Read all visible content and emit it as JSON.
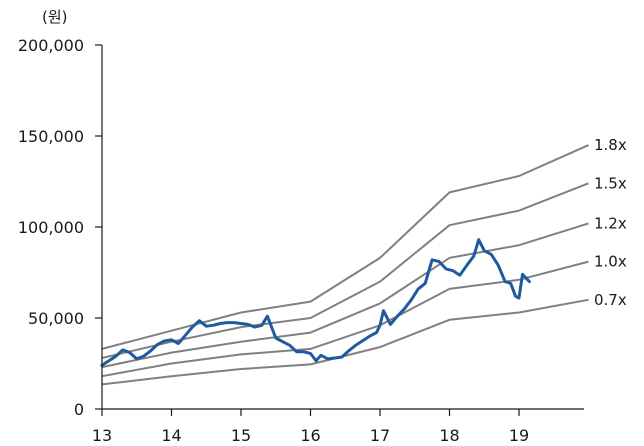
{
  "chart_data": {
    "type": "line",
    "unit_label": "(원)",
    "ylim": [
      0,
      200000
    ],
    "y_ticks": [
      0,
      50000,
      100000,
      150000,
      200000
    ],
    "y_tick_labels": [
      "0",
      "50,000",
      "100,000",
      "150,000",
      "200,000"
    ],
    "xlim": [
      2013,
      2020
    ],
    "x_ticks": [
      2013,
      2014,
      2015,
      2016,
      2017,
      2018,
      2019
    ],
    "x_tick_labels": [
      "13",
      "14",
      "15",
      "16",
      "17",
      "18",
      "19"
    ],
    "grid": false,
    "legend": "none",
    "band_color": "#808080",
    "price_color": "#1f5aa0",
    "bands": [
      {
        "label": "1.8x",
        "points": [
          [
            2013.0,
            33000
          ],
          [
            2014.0,
            43000
          ],
          [
            2015.0,
            53000
          ],
          [
            2016.0,
            59000
          ],
          [
            2017.0,
            83000
          ],
          [
            2018.0,
            119000
          ],
          [
            2019.0,
            128000
          ],
          [
            2020.0,
            145000
          ]
        ]
      },
      {
        "label": "1.5x",
        "points": [
          [
            2013.0,
            28000
          ],
          [
            2014.0,
            37000
          ],
          [
            2015.0,
            45000
          ],
          [
            2016.0,
            50000
          ],
          [
            2017.0,
            70000
          ],
          [
            2018.0,
            101000
          ],
          [
            2019.0,
            109000
          ],
          [
            2020.0,
            124000
          ]
        ]
      },
      {
        "label": "1.2x",
        "points": [
          [
            2013.0,
            23000
          ],
          [
            2014.0,
            31000
          ],
          [
            2015.0,
            37000
          ],
          [
            2016.0,
            42000
          ],
          [
            2017.0,
            58000
          ],
          [
            2018.0,
            83000
          ],
          [
            2019.0,
            90000
          ],
          [
            2020.0,
            102000
          ]
        ]
      },
      {
        "label": "1.0x",
        "points": [
          [
            2013.0,
            18000
          ],
          [
            2014.0,
            25000
          ],
          [
            2015.0,
            30000
          ],
          [
            2016.0,
            33000
          ],
          [
            2017.0,
            46000
          ],
          [
            2018.0,
            66000
          ],
          [
            2019.0,
            71000
          ],
          [
            2020.0,
            81000
          ]
        ]
      },
      {
        "label": "0.7x",
        "points": [
          [
            2013.0,
            13500
          ],
          [
            2014.0,
            18000
          ],
          [
            2015.0,
            22000
          ],
          [
            2016.0,
            24500
          ],
          [
            2017.0,
            34000
          ],
          [
            2018.0,
            49000
          ],
          [
            2019.0,
            53000
          ],
          [
            2020.0,
            60000
          ]
        ]
      }
    ],
    "price": [
      [
        2013.0,
        24000
      ],
      [
        2013.1,
        26500
      ],
      [
        2013.2,
        29000
      ],
      [
        2013.3,
        32500
      ],
      [
        2013.4,
        31000
      ],
      [
        2013.5,
        27500
      ],
      [
        2013.6,
        29000
      ],
      [
        2013.7,
        32000
      ],
      [
        2013.8,
        35500
      ],
      [
        2013.9,
        37500
      ],
      [
        2014.0,
        38000
      ],
      [
        2014.1,
        36000
      ],
      [
        2014.2,
        40500
      ],
      [
        2014.3,
        45000
      ],
      [
        2014.4,
        48500
      ],
      [
        2014.5,
        45500
      ],
      [
        2014.6,
        46000
      ],
      [
        2014.7,
        47000
      ],
      [
        2014.8,
        47500
      ],
      [
        2014.9,
        47500
      ],
      [
        2015.0,
        47000
      ],
      [
        2015.1,
        46500
      ],
      [
        2015.2,
        45000
      ],
      [
        2015.3,
        46000
      ],
      [
        2015.38,
        51000
      ],
      [
        2015.5,
        39000
      ],
      [
        2015.6,
        37000
      ],
      [
        2015.7,
        35000
      ],
      [
        2015.8,
        31500
      ],
      [
        2015.9,
        31500
      ],
      [
        2016.0,
        30500
      ],
      [
        2016.08,
        26500
      ],
      [
        2016.15,
        29500
      ],
      [
        2016.25,
        27500
      ],
      [
        2016.35,
        28000
      ],
      [
        2016.45,
        28500
      ],
      [
        2016.55,
        32000
      ],
      [
        2016.65,
        35000
      ],
      [
        2016.75,
        37500
      ],
      [
        2016.85,
        40000
      ],
      [
        2016.95,
        42000
      ],
      [
        2017.0,
        46000
      ],
      [
        2017.05,
        54000
      ],
      [
        2017.15,
        46500
      ],
      [
        2017.25,
        51000
      ],
      [
        2017.35,
        55000
      ],
      [
        2017.45,
        60000
      ],
      [
        2017.55,
        66000
      ],
      [
        2017.65,
        69000
      ],
      [
        2017.75,
        82000
      ],
      [
        2017.85,
        81000
      ],
      [
        2017.95,
        77000
      ],
      [
        2018.05,
        76000
      ],
      [
        2018.15,
        73500
      ],
      [
        2018.25,
        79000
      ],
      [
        2018.35,
        84000
      ],
      [
        2018.42,
        93000
      ],
      [
        2018.5,
        87000
      ],
      [
        2018.6,
        85000
      ],
      [
        2018.7,
        79000
      ],
      [
        2018.8,
        70000
      ],
      [
        2018.88,
        69000
      ],
      [
        2018.95,
        62000
      ],
      [
        2019.0,
        61000
      ],
      [
        2019.05,
        74000
      ],
      [
        2019.15,
        70000
      ]
    ]
  }
}
